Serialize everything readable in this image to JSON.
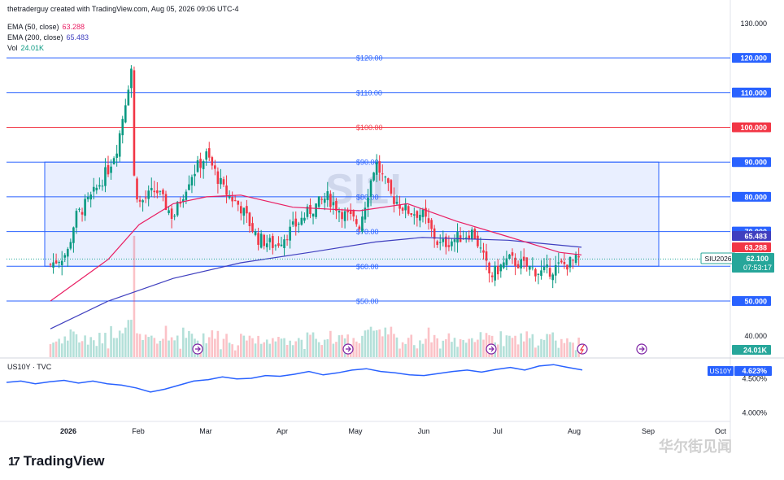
{
  "header": {
    "attribution": "thetraderguy created with TradingView.com, Aug 05, 2026 09:06 UTC-4",
    "ema50_label": "EMA (50, close)",
    "ema50_value": "63.288",
    "ema200_label": "EMA (200, close)",
    "ema200_value": "65.483",
    "vol_label": "Vol",
    "vol_value": "24.01K"
  },
  "watermark_symbol": "SI1!",
  "lower_pane": {
    "title": "US10Y · TVC",
    "tag_symbol": "US10Y",
    "tag_value": "4.623%",
    "y_ticks": [
      "4.500%",
      "4.000%"
    ]
  },
  "price_axis": {
    "ticks": [
      "130.000",
      "120.000",
      "110.000",
      "100.000",
      "90.000",
      "80.000",
      "70.000",
      "60.000",
      "50.000",
      "40.000"
    ],
    "tag_ema200": "65.483",
    "tag_ema50": "63.288",
    "tag_symbol": "SIU2026",
    "tag_price": "62.100",
    "tag_countdown": "07:53:17",
    "tag_volume": "24.01K"
  },
  "time_axis": [
    "2026",
    "Feb",
    "Mar",
    "Apr",
    "May",
    "Jun",
    "Jul",
    "Aug",
    "Sep",
    "Oct"
  ],
  "levels": [
    {
      "label": "$120.00",
      "color": "#2962ff"
    },
    {
      "label": "$110.00",
      "color": "#2962ff"
    },
    {
      "label": "$100.00",
      "color": "#f23645"
    },
    {
      "label": "$90.00",
      "color": "#2962ff"
    },
    {
      "label": "$80.00",
      "color": "#2962ff"
    },
    {
      "label": "$70.00",
      "color": "#2962ff"
    },
    {
      "label": "$60.00",
      "color": "#2962ff"
    },
    {
      "label": "$50.00",
      "color": "#2962ff"
    }
  ],
  "branding": {
    "logo_text": "TradingView",
    "logo_mark": "17",
    "corner_watermark": "华尔街见闻"
  },
  "colors": {
    "up": "#089981",
    "down": "#f23645",
    "ema50": "#e91e63",
    "ema200": "#3f3fbf",
    "level": "#2962ff",
    "range_box": "#2962ff",
    "us10y": "#2962ff"
  },
  "chart_data": [
    {
      "type": "candlestick",
      "symbol": "SIU2026",
      "title": "SI1!",
      "x_axis": [
        "2026",
        "Feb",
        "Mar",
        "Apr",
        "May",
        "Jun",
        "Jul",
        "Aug",
        "Sep",
        "Oct"
      ],
      "ylim": [
        35,
        132
      ],
      "last_price": 62.1,
      "ema50_last": 63.288,
      "ema200_last": 65.483,
      "horizontal_levels": [
        120,
        110,
        100,
        90,
        80,
        70,
        60,
        50
      ],
      "range_box": {
        "low": 60,
        "high": 90,
        "start": "Dec 2025",
        "end": "Aug 2026"
      },
      "close_path": [
        {
          "date": "Dec 22",
          "value": 60.5
        },
        {
          "date": "Dec 29",
          "value": 64
        },
        {
          "date": "Jan 5",
          "value": 74
        },
        {
          "date": "Jan 12",
          "value": 80
        },
        {
          "date": "Jan 19",
          "value": 88
        },
        {
          "date": "Jan 23",
          "value": 95
        },
        {
          "date": "Jan 29",
          "value": 118
        },
        {
          "date": "Jan 30",
          "value": 85
        },
        {
          "date": "Feb 2",
          "value": 78
        },
        {
          "date": "Feb 9",
          "value": 82
        },
        {
          "date": "Feb 16",
          "value": 74
        },
        {
          "date": "Feb 23",
          "value": 86
        },
        {
          "date": "Mar 2",
          "value": 92
        },
        {
          "date": "Mar 9",
          "value": 82
        },
        {
          "date": "Mar 16",
          "value": 77
        },
        {
          "date": "Mar 23",
          "value": 68
        },
        {
          "date": "Mar 30",
          "value": 66
        },
        {
          "date": "Apr 6",
          "value": 71
        },
        {
          "date": "Apr 13",
          "value": 76
        },
        {
          "date": "Apr 20",
          "value": 80
        },
        {
          "date": "Apr 27",
          "value": 75
        },
        {
          "date": "May 4",
          "value": 72
        },
        {
          "date": "May 11",
          "value": 90
        },
        {
          "date": "May 18",
          "value": 80
        },
        {
          "date": "May 25",
          "value": 76
        },
        {
          "date": "Jun 1",
          "value": 75
        },
        {
          "date": "Jun 8",
          "value": 66
        },
        {
          "date": "Jun 15",
          "value": 68
        },
        {
          "date": "Jun 22",
          "value": 70
        },
        {
          "date": "Jun 29",
          "value": 57
        },
        {
          "date": "Jul 6",
          "value": 62
        },
        {
          "date": "Jul 13",
          "value": 60
        },
        {
          "date": "Jul 20",
          "value": 58
        },
        {
          "date": "Jul 27",
          "value": 60
        },
        {
          "date": "Aug 5",
          "value": 62.1
        }
      ],
      "ema50": [
        {
          "date": "Dec 22",
          "value": 50
        },
        {
          "date": "Jan 19",
          "value": 62
        },
        {
          "date": "Feb 2",
          "value": 72
        },
        {
          "date": "Feb 16",
          "value": 78
        },
        {
          "date": "Mar 2",
          "value": 80
        },
        {
          "date": "Mar 16",
          "value": 80.5
        },
        {
          "date": "Apr 6",
          "value": 77
        },
        {
          "date": "May 4",
          "value": 76
        },
        {
          "date": "May 25",
          "value": 78
        },
        {
          "date": "Jun 15",
          "value": 73
        },
        {
          "date": "Jul 6",
          "value": 68.5
        },
        {
          "date": "Jul 27",
          "value": 64
        },
        {
          "date": "Aug 5",
          "value": 63.288
        }
      ],
      "ema200": [
        {
          "date": "Dec 22",
          "value": 42
        },
        {
          "date": "Jan 19",
          "value": 50
        },
        {
          "date": "Feb 16",
          "value": 56.5
        },
        {
          "date": "Mar 16",
          "value": 61
        },
        {
          "date": "Apr 13",
          "value": 64
        },
        {
          "date": "May 11",
          "value": 67
        },
        {
          "date": "Jun 1",
          "value": 68.3
        },
        {
          "date": "Jul 6",
          "value": 67.5
        },
        {
          "date": "Aug 5",
          "value": 65.483
        }
      ]
    },
    {
      "type": "line",
      "title": "US10Y · TVC",
      "series": [
        {
          "name": "US10Y",
          "values": [
            4.44,
            4.46,
            4.42,
            4.45,
            4.47,
            4.43,
            4.46,
            4.42,
            4.4,
            4.36,
            4.3,
            4.34,
            4.4,
            4.46,
            4.48,
            4.52,
            4.49,
            4.5,
            4.54,
            4.53,
            4.56,
            4.6,
            4.55,
            4.58,
            4.62,
            4.64,
            4.6,
            4.58,
            4.55,
            4.54,
            4.57,
            4.6,
            4.62,
            4.59,
            4.63,
            4.66,
            4.62,
            4.68,
            4.7,
            4.66,
            4.623
          ]
        }
      ],
      "x": [
        "Dec 22",
        "Dec 29",
        "Jan 5",
        "Jan 12",
        "Jan 19",
        "Jan 26",
        "Feb 2",
        "Feb 9",
        "Feb 16",
        "Feb 23",
        "Mar 2",
        "Mar 9",
        "Mar 16",
        "Mar 23",
        "Mar 30",
        "Apr 6",
        "Apr 13",
        "Apr 20",
        "Apr 27",
        "May 4",
        "May 11",
        "May 18",
        "May 25",
        "Jun 1",
        "Jun 8",
        "Jun 15",
        "Jun 22",
        "Jun 29",
        "Jul 6",
        "Jul 13",
        "Jul 20",
        "Jul 27",
        "Aug 3",
        "Aug 5",
        "Aug 5b",
        "Aug 5c",
        "Aug 5d",
        "Aug 5e",
        "Aug 5f",
        "Aug 5g",
        "Aug 5h"
      ],
      "y_ticks": [
        "4.500%",
        "4.000%"
      ],
      "last_value": 4.623
    }
  ]
}
